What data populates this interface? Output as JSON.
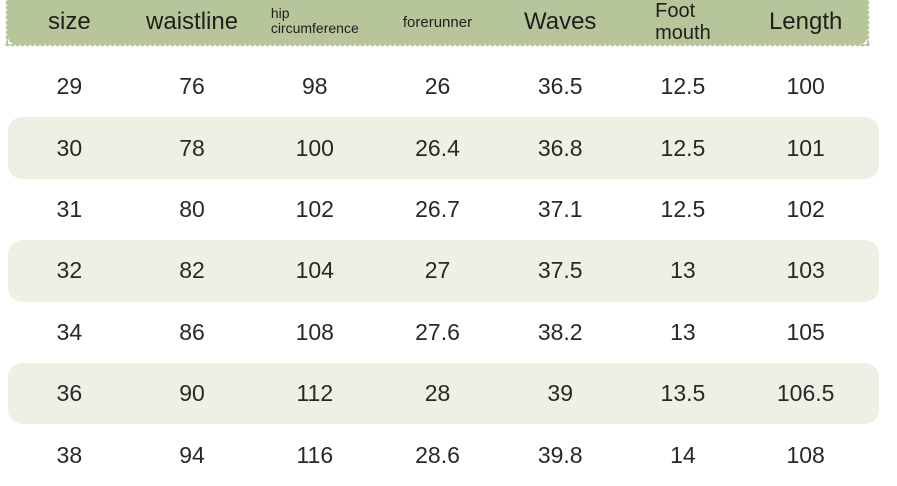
{
  "colors": {
    "header_bg": "#b7c59b",
    "stripe_bg": "#eff0e4",
    "text": "#27282a"
  },
  "header": {
    "columns": [
      {
        "lines": [
          "size"
        ]
      },
      {
        "lines": [
          "waistline"
        ]
      },
      {
        "lines": [
          "hip",
          "circumference"
        ]
      },
      {
        "lines": [
          "forerunner"
        ]
      },
      {
        "lines": [
          "Waves"
        ]
      },
      {
        "lines": [
          "Foot",
          "mouth"
        ]
      },
      {
        "lines": [
          "Length"
        ]
      }
    ]
  },
  "chart_data": {
    "type": "table",
    "columns": [
      "size",
      "waistline",
      "hip circumference",
      "forerunner",
      "Waves",
      "Foot mouth",
      "Length"
    ],
    "rows": [
      [
        "29",
        "76",
        "98",
        "26",
        "36.5",
        "12.5",
        "100"
      ],
      [
        "30",
        "78",
        "100",
        "26.4",
        "36.8",
        "12.5",
        "101"
      ],
      [
        "31",
        "80",
        "102",
        "26.7",
        "37.1",
        "12.5",
        "102"
      ],
      [
        "32",
        "82",
        "104",
        "27",
        "37.5",
        "13",
        "103"
      ],
      [
        "34",
        "86",
        "108",
        "27.6",
        "38.2",
        "13",
        "105"
      ],
      [
        "36",
        "90",
        "112",
        "28",
        "39",
        "13.5",
        "106.5"
      ],
      [
        "38",
        "94",
        "116",
        "28.6",
        "39.8",
        "14",
        "108"
      ]
    ]
  }
}
